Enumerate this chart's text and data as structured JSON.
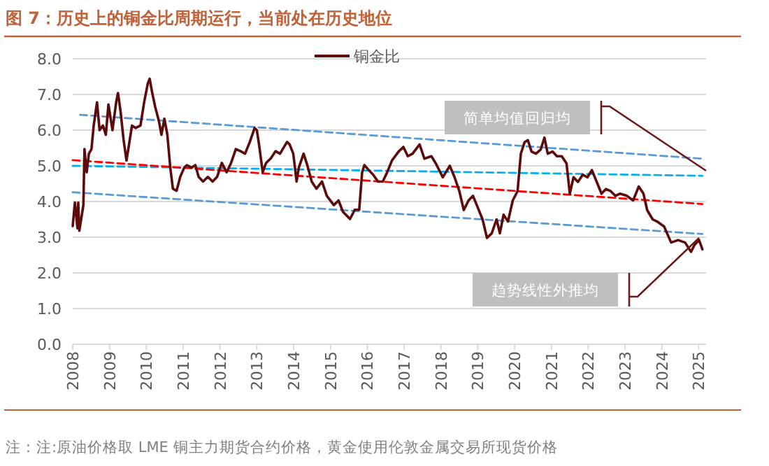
{
  "chart_data": {
    "type": "line",
    "title": "图 7：历史上的铜金比周期运行，当前处在历史地位",
    "x": [
      2008.0,
      2008.06,
      2008.13,
      2008.15,
      2008.18,
      2008.29,
      2008.32,
      2008.38,
      2008.44,
      2008.51,
      2008.57,
      2008.66,
      2008.73,
      2008.82,
      2008.9,
      2008.97,
      2009.08,
      2009.18,
      2009.23,
      2009.3,
      2009.38,
      2009.46,
      2009.53,
      2009.61,
      2009.71,
      2009.84,
      2009.94,
      2010.04,
      2010.09,
      2010.16,
      2010.24,
      2010.34,
      2010.41,
      2010.49,
      2010.57,
      2010.65,
      2010.72,
      2010.82,
      2010.92,
      2011.03,
      2011.1,
      2011.23,
      2011.33,
      2011.42,
      2011.54,
      2011.67,
      2011.8,
      2011.92,
      2012.05,
      2012.18,
      2012.3,
      2012.43,
      2012.56,
      2012.68,
      2012.81,
      2012.94,
      2013.0,
      2013.06,
      2013.16,
      2013.25,
      2013.38,
      2013.51,
      2013.63,
      2013.82,
      2013.89,
      2013.99,
      2014.08,
      2014.14,
      2014.27,
      2014.37,
      2014.49,
      2014.62,
      2014.77,
      2014.9,
      2015.09,
      2015.22,
      2015.34,
      2015.53,
      2015.66,
      2015.78,
      2015.86,
      2015.92,
      2016.04,
      2016.16,
      2016.29,
      2016.42,
      2016.54,
      2016.67,
      2016.85,
      2016.98,
      2017.1,
      2017.23,
      2017.42,
      2017.55,
      2017.74,
      2017.86,
      2018.05,
      2018.24,
      2018.37,
      2018.5,
      2018.62,
      2018.75,
      2018.87,
      2019.0,
      2019.13,
      2019.25,
      2019.38,
      2019.51,
      2019.6,
      2019.7,
      2019.82,
      2019.95,
      2020.08,
      2020.17,
      2020.27,
      2020.36,
      2020.46,
      2020.58,
      2020.71,
      2020.81,
      2020.9,
      2021.03,
      2021.15,
      2021.28,
      2021.41,
      2021.5,
      2021.6,
      2021.72,
      2021.85,
      2021.98,
      2022.1,
      2022.23,
      2022.36,
      2022.48,
      2022.61,
      2022.74,
      2022.86,
      2023.05,
      2023.22,
      2023.37,
      2023.5,
      2023.6,
      2023.75,
      2023.87,
      2024.06,
      2024.25,
      2024.44,
      2024.63,
      2024.79,
      2024.89,
      2025.01,
      2025.1
    ],
    "series": [
      {
        "name": "铜金比",
        "color": "#5c0a0a",
        "values": [
          3.31,
          3.97,
          3.25,
          3.97,
          3.18,
          3.9,
          5.47,
          4.82,
          5.34,
          5.47,
          6.13,
          6.78,
          6.0,
          6.13,
          5.87,
          6.72,
          6.0,
          6.78,
          7.04,
          6.52,
          5.74,
          5.15,
          5.6,
          6.13,
          6.06,
          6.13,
          6.78,
          7.31,
          7.44,
          7.04,
          6.65,
          6.26,
          5.87,
          6.32,
          5.87,
          4.95,
          4.36,
          4.3,
          4.69,
          4.95,
          5.02,
          4.95,
          5.02,
          4.69,
          4.56,
          4.69,
          4.56,
          4.69,
          5.08,
          4.82,
          5.08,
          5.47,
          5.41,
          5.34,
          5.67,
          6.06,
          6.0,
          5.6,
          4.82,
          5.08,
          5.21,
          5.41,
          5.34,
          5.67,
          5.6,
          5.34,
          4.56,
          4.95,
          5.34,
          5.02,
          4.56,
          4.36,
          4.56,
          4.16,
          3.9,
          4.03,
          3.71,
          3.51,
          3.77,
          3.77,
          4.82,
          5.02,
          4.88,
          4.75,
          4.56,
          4.56,
          4.82,
          5.15,
          5.4,
          5.53,
          5.27,
          5.34,
          5.6,
          5.2,
          5.27,
          5.07,
          4.68,
          5.0,
          4.68,
          4.29,
          3.76,
          4.03,
          4.16,
          3.83,
          3.5,
          2.98,
          3.11,
          3.5,
          3.11,
          3.63,
          3.44,
          4.03,
          4.29,
          5.34,
          5.66,
          5.72,
          5.4,
          5.34,
          5.46,
          5.79,
          5.34,
          5.4,
          5.27,
          5.27,
          5.07,
          4.22,
          4.68,
          4.55,
          4.75,
          4.68,
          4.88,
          4.55,
          4.22,
          4.35,
          4.29,
          4.16,
          4.22,
          4.16,
          4.03,
          4.42,
          4.22,
          3.76,
          3.5,
          3.44,
          3.3,
          2.85,
          2.92,
          2.85,
          2.59,
          2.79,
          2.92,
          2.66
        ]
      },
      {
        "type": "line",
        "x": [
          2008.2,
          2025.1
        ],
        "values": [
          6.43,
          5.2
        ],
        "color": "#5b9bd5",
        "line_style": "dashed"
      },
      {
        "type": "line",
        "x": [
          2008.0,
          2025.1
        ],
        "values": [
          5.0,
          4.72
        ],
        "color": "#00b0f0",
        "line_style": "dashed"
      },
      {
        "type": "line",
        "x": [
          2008.0,
          2025.1
        ],
        "values": [
          5.16,
          3.93
        ],
        "color": "#ff0000",
        "line_style": "dashed"
      },
      {
        "type": "line",
        "x": [
          2008.0,
          2025.1
        ],
        "values": [
          4.26,
          3.09
        ],
        "color": "#5b9bd5",
        "line_style": "dashed"
      }
    ],
    "xlim": [
      2008,
      2025.2
    ],
    "xticks": [
      2008,
      2009,
      2010,
      2011,
      2012,
      2013,
      2014,
      2015,
      2016,
      2017,
      2018,
      2019,
      2020,
      2021,
      2022,
      2023,
      2024,
      2025
    ],
    "ylim": [
      0,
      8
    ],
    "yticks": [
      {
        "value": 0,
        "label": "0.0"
      },
      {
        "value": 1,
        "label": "1.0"
      },
      {
        "value": 2,
        "label": "2.0"
      },
      {
        "value": 3,
        "label": "3.0"
      },
      {
        "value": 4,
        "label": "4.0"
      },
      {
        "value": 5,
        "label": "5.0"
      },
      {
        "value": 6,
        "label": "6.0"
      },
      {
        "value": 7,
        "label": "7.0"
      },
      {
        "value": 8,
        "label": "8.0"
      }
    ],
    "grid": "y",
    "legend": "top",
    "annotations": [
      "简单均值回归均",
      "趋势线性外推均",
      "注：注:原油价格取 LME 铜主力期货合约价格，黄金使用伦敦金属交易所现货价格"
    ]
  }
}
